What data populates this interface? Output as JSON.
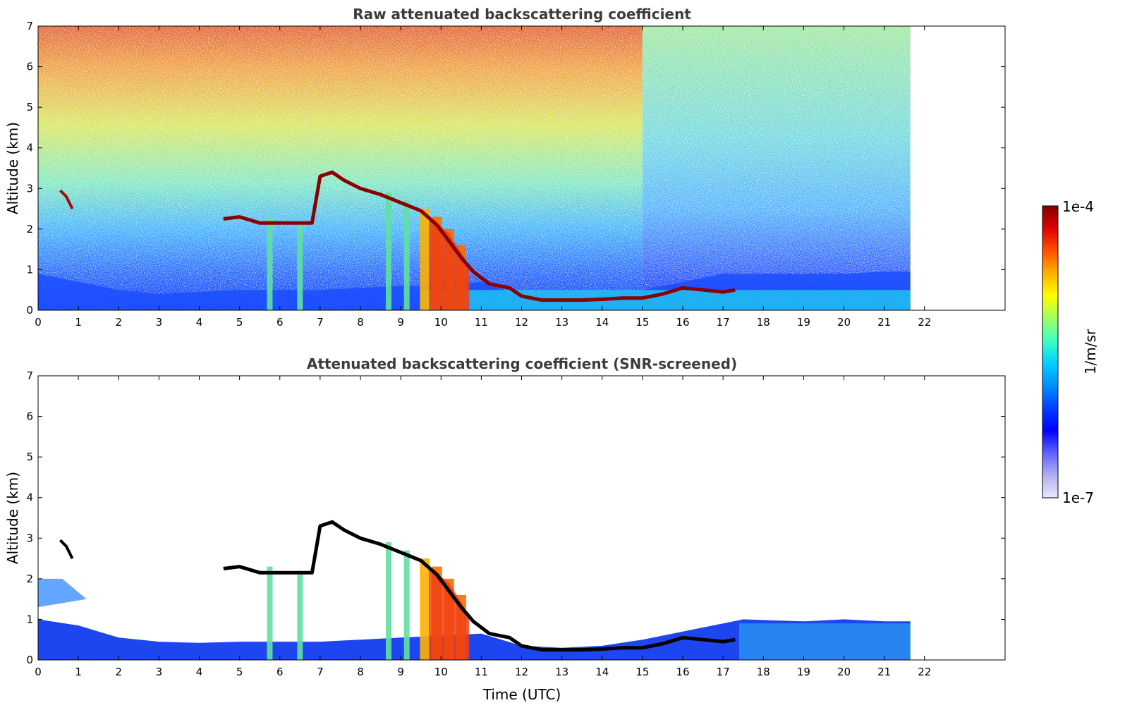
{
  "chart_data": [
    {
      "type": "heatmap",
      "title": "Raw attenuated backscattering coefficient",
      "xlabel": "",
      "ylabel": "Altitude (km)",
      "xlim": [
        0,
        24
      ],
      "ylim": [
        0,
        7
      ],
      "xticks": [
        "0",
        "1",
        "2",
        "3",
        "4",
        "5",
        "6",
        "7",
        "8",
        "9",
        "10",
        "11",
        "12",
        "13",
        "14",
        "15",
        "16",
        "17",
        "18",
        "19",
        "20",
        "21",
        "22"
      ],
      "yticks": [
        "0",
        "1",
        "2",
        "3",
        "4",
        "5",
        "6",
        "7"
      ],
      "data_end_time": 21.65,
      "features": {
        "boundary_layer_top": [
          [
            0,
            0.9
          ],
          [
            1,
            0.7
          ],
          [
            2,
            0.5
          ],
          [
            3,
            0.4
          ],
          [
            4,
            0.45
          ],
          [
            5,
            0.5
          ],
          [
            6,
            0.5
          ],
          [
            7,
            0.5
          ],
          [
            8,
            0.55
          ],
          [
            9,
            0.6
          ],
          [
            10,
            0.6
          ],
          [
            11,
            0.7
          ],
          [
            12,
            0.35
          ],
          [
            13,
            0.3
          ],
          [
            14,
            0.35
          ],
          [
            15,
            0.5
          ],
          [
            16,
            0.7
          ],
          [
            17,
            0.9
          ],
          [
            18,
            0.9
          ],
          [
            19,
            0.9
          ],
          [
            20,
            0.9
          ],
          [
            21,
            0.95
          ],
          [
            21.65,
            0.95
          ]
        ],
        "cloud_layer": [
          [
            4.6,
            2.25
          ],
          [
            5.0,
            2.3
          ],
          [
            5.5,
            2.15
          ],
          [
            6.0,
            2.15
          ],
          [
            6.5,
            2.15
          ],
          [
            6.8,
            2.15
          ],
          [
            7.0,
            3.3
          ],
          [
            7.3,
            3.4
          ],
          [
            7.6,
            3.2
          ],
          [
            8.0,
            3.0
          ],
          [
            8.5,
            2.85
          ],
          [
            9.0,
            2.65
          ],
          [
            9.5,
            2.45
          ],
          [
            9.9,
            2.1
          ],
          [
            10.2,
            1.7
          ],
          [
            10.5,
            1.3
          ],
          [
            10.8,
            0.95
          ],
          [
            11.2,
            0.65
          ],
          [
            11.7,
            0.55
          ],
          [
            12.0,
            0.35
          ],
          [
            12.5,
            0.25
          ],
          [
            13.0,
            0.25
          ],
          [
            13.5,
            0.25
          ],
          [
            14.0,
            0.27
          ],
          [
            14.5,
            0.3
          ],
          [
            15.0,
            0.3
          ],
          [
            15.5,
            0.4
          ],
          [
            16.0,
            0.55
          ],
          [
            16.5,
            0.5
          ],
          [
            17.0,
            0.45
          ],
          [
            17.3,
            0.5
          ]
        ],
        "precip_shafts": [
          [
            5.75,
            2.3
          ],
          [
            6.5,
            2.1
          ],
          [
            8.7,
            2.9
          ],
          [
            9.15,
            2.7
          ],
          [
            9.6,
            2.5
          ],
          [
            9.9,
            2.3
          ],
          [
            10.2,
            2.0
          ],
          [
            10.5,
            1.6
          ]
        ]
      }
    },
    {
      "type": "heatmap",
      "title": "Attenuated backscattering coefficient (SNR-screened)",
      "xlabel": "Time (UTC)",
      "ylabel": "Altitude (km)",
      "xlim": [
        0,
        24
      ],
      "ylim": [
        0,
        7
      ],
      "xticks": [
        "0",
        "1",
        "2",
        "3",
        "4",
        "5",
        "6",
        "7",
        "8",
        "9",
        "10",
        "11",
        "12",
        "13",
        "14",
        "15",
        "16",
        "17",
        "18",
        "19",
        "20",
        "21",
        "22"
      ],
      "yticks": [
        "0",
        "1",
        "2",
        "3",
        "4",
        "5",
        "6",
        "7"
      ],
      "data_end_time": 21.65
    }
  ],
  "colorbar": {
    "label": "1/m/sr",
    "max_label": "1e-4",
    "min_label": "1e-7",
    "colors": [
      "#e8e8ff",
      "#b0b0f0",
      "#6060ff",
      "#0000ff",
      "#0040ff",
      "#0090ff",
      "#00d0ff",
      "#40ffc0",
      "#a0ff60",
      "#ffff00",
      "#ffb000",
      "#ff5000",
      "#e00000",
      "#800000"
    ]
  }
}
